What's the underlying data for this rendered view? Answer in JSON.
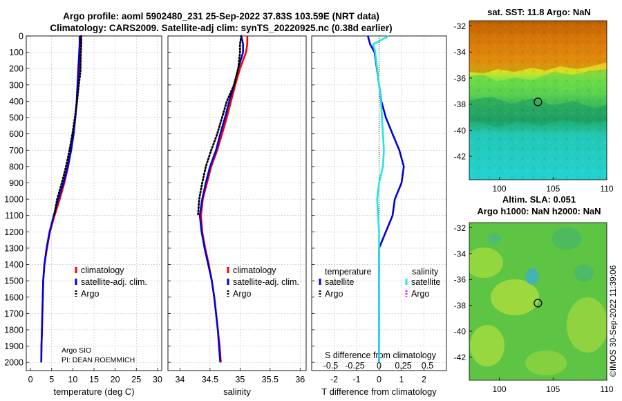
{
  "header": {
    "line1": "Argo profile: aoml 5902480_231 25-Sep-2022 37.83S 103.59E (NRT data)",
    "line2": "Climatology: CARS2009. Satellite-adj clim: synTS_20220925.nc (0.38d earlier)"
  },
  "argo_info": {
    "line1": "Argo SIO",
    "line2": "PI: DEAN ROEMMICH"
  },
  "maps": {
    "sst_title": "sat. SST: 11.8 Argo: NaN",
    "sla_title1": "Altim. SLA: 0.051",
    "sla_title2": "Argo h1000: NaN h2000: NaN",
    "lat_ticks": [
      "-32",
      "-34",
      "-36",
      "-38",
      "-40",
      "-42"
    ],
    "lon_ticks": [
      "100",
      "105",
      "110"
    ],
    "marker": {
      "lon": 103.59,
      "lat": -37.83
    }
  },
  "stamp": "©IMOS 30-Sep-2022 11:39:06",
  "colors": {
    "climatology": "#ff0000",
    "satellite": "#0000dd",
    "argo": "#000000",
    "t_satellite": "#0000dd",
    "s_satellite": "#22e5e5",
    "s_argo": "#ff00ff",
    "grid": "#bbbbbb"
  },
  "chart_data": [
    {
      "type": "line",
      "title": "",
      "xlabel": "temperature (deg C)",
      "ylabel": "",
      "xlim": [
        -1,
        31
      ],
      "ylim": [
        2050,
        0
      ],
      "xticks": [
        "0",
        "5",
        "10",
        "15",
        "20",
        "25",
        "30"
      ],
      "xtick_values": [
        0,
        5,
        10,
        15,
        20,
        25,
        30
      ],
      "yticks": [
        "0",
        "100",
        "200",
        "300",
        "400",
        "500",
        "600",
        "700",
        "800",
        "900",
        "1000",
        "1100",
        "1200",
        "1300",
        "1400",
        "1500",
        "1600",
        "1700",
        "1800",
        "1900",
        "2000"
      ],
      "ytick_values": [
        0,
        100,
        200,
        300,
        400,
        500,
        600,
        700,
        800,
        900,
        1000,
        1100,
        1200,
        1300,
        1400,
        1500,
        1600,
        1700,
        1800,
        1900,
        2000
      ],
      "legend": {
        "position": "lower-right",
        "entries": [
          "climatology",
          "satellite-adj. clim.",
          "Argo"
        ]
      },
      "series": [
        {
          "name": "climatology",
          "color_key": "climatology",
          "x": [
            11.9,
            11.9,
            11.8,
            11.6,
            11.3,
            11.0,
            10.6,
            10.1,
            9.6,
            8.9,
            8.0,
            6.9,
            5.7,
            4.6,
            3.9,
            3.3,
            3.0,
            2.9,
            2.8,
            2.7,
            2.6,
            2.55
          ],
          "y": [
            0,
            50,
            100,
            200,
            300,
            400,
            500,
            600,
            700,
            800,
            900,
            1000,
            1100,
            1200,
            1300,
            1400,
            1500,
            1600,
            1700,
            1800,
            1900,
            2000
          ]
        },
        {
          "name": "satellite-adj. clim.",
          "color_key": "satellite",
          "x": [
            11.6,
            11.6,
            11.5,
            11.3,
            11.1,
            10.9,
            10.6,
            10.2,
            9.6,
            8.8,
            7.8,
            6.6,
            5.5,
            4.5,
            3.8,
            3.3,
            3.0,
            2.9,
            2.8,
            2.7,
            2.6,
            2.55
          ],
          "y": [
            0,
            50,
            100,
            200,
            300,
            400,
            500,
            600,
            700,
            800,
            900,
            1000,
            1100,
            1200,
            1300,
            1400,
            1500,
            1600,
            1700,
            1800,
            1900,
            2000
          ]
        },
        {
          "name": "Argo",
          "color_key": "argo",
          "x": [
            12.0,
            12.0,
            11.9,
            11.8,
            11.4,
            11.0,
            10.5,
            9.9,
            9.2,
            8.4,
            7.4,
            6.3,
            5.6
          ],
          "y": [
            0,
            50,
            100,
            220,
            300,
            400,
            500,
            600,
            700,
            800,
            900,
            1000,
            1100
          ]
        }
      ]
    },
    {
      "type": "line",
      "title": "",
      "xlabel": "salinity",
      "ylabel": "",
      "xlim": [
        33.8,
        36.1
      ],
      "ylim": [
        2050,
        0
      ],
      "xticks": [
        "34",
        "34.5",
        "35",
        "35.5",
        "36"
      ],
      "xtick_values": [
        34,
        34.5,
        35,
        35.5,
        36
      ],
      "legend": {
        "position": "lower-right",
        "entries": [
          "climatology",
          "satellite-adj. clim.",
          "Argo"
        ]
      },
      "series": [
        {
          "name": "climatology",
          "color_key": "climatology",
          "x": [
            35.12,
            35.12,
            35.1,
            35.0,
            34.92,
            34.85,
            34.78,
            34.7,
            34.62,
            34.52,
            34.45,
            34.38,
            34.35,
            34.37,
            34.42,
            34.48,
            34.53,
            34.57,
            34.6,
            34.63,
            34.66,
            34.68
          ],
          "y": [
            0,
            50,
            100,
            200,
            300,
            400,
            500,
            600,
            700,
            800,
            900,
            1000,
            1100,
            1200,
            1300,
            1400,
            1500,
            1600,
            1700,
            1800,
            1900,
            2000
          ]
        },
        {
          "name": "satellite-adj. clim.",
          "color_key": "satellite",
          "x": [
            35.02,
            35.05,
            35.05,
            34.97,
            34.9,
            34.82,
            34.75,
            34.67,
            34.6,
            34.5,
            34.43,
            34.37,
            34.33,
            34.36,
            34.41,
            34.47,
            34.53,
            34.57,
            34.6,
            34.63,
            34.65,
            34.67
          ],
          "y": [
            0,
            50,
            100,
            200,
            300,
            400,
            500,
            600,
            700,
            800,
            900,
            1000,
            1100,
            1200,
            1300,
            1400,
            1500,
            1600,
            1700,
            1800,
            1900,
            2000
          ]
        },
        {
          "name": "Argo",
          "color_key": "argo",
          "x": [
            35.02,
            35.0,
            35.0,
            34.97,
            34.9,
            34.78,
            34.7,
            34.62,
            34.52,
            34.43,
            34.37,
            34.32,
            34.3
          ],
          "y": [
            0,
            50,
            100,
            200,
            300,
            400,
            500,
            600,
            700,
            800,
            900,
            1000,
            1100
          ]
        }
      ]
    },
    {
      "type": "line",
      "title": "",
      "xlabel": "T difference from climatology",
      "ylabel": "",
      "xlim": [
        -3,
        3
      ],
      "ylim": [
        2050,
        0
      ],
      "xticks": [
        "-2",
        "-1",
        "0",
        "1",
        "2"
      ],
      "xtick_values": [
        -2,
        -1,
        0,
        1,
        2
      ],
      "s_axis_label": "S difference from climatology",
      "s_axis_ticks": [
        "-0.5",
        "-0.25",
        "0",
        "0.25",
        "0.5"
      ],
      "s_axis_tick_values": [
        -0.5,
        -0.25,
        0,
        0.25,
        0.5
      ],
      "legend": {
        "position": "lower-center",
        "temperature_title": "temperature",
        "salinity_title": "salinity",
        "temperature_entries": [
          "satellite",
          "Argo"
        ],
        "salinity_entries": [
          "satellite",
          "Argo"
        ]
      },
      "series": [
        {
          "name": "temperature satellite",
          "color_key": "t_satellite",
          "x_scale": "T",
          "x": [
            -0.5,
            -0.4,
            -0.2,
            -0.1,
            0.0,
            0.1,
            0.3,
            0.6,
            0.9,
            1.1,
            1.0,
            0.7,
            0.6,
            0.3,
            0.0,
            0.0,
            0.0,
            0.0,
            0.0,
            0.0,
            0.0,
            0.0
          ],
          "y": [
            0,
            50,
            100,
            200,
            300,
            400,
            500,
            600,
            700,
            800,
            900,
            1000,
            1100,
            1200,
            1300,
            1400,
            1500,
            1600,
            1700,
            1800,
            1900,
            2000
          ]
        },
        {
          "name": "salinity satellite",
          "color_key": "s_satellite",
          "x_scale": "S",
          "x": [
            0.1,
            -0.06,
            -0.04,
            -0.02,
            0.0,
            0.02,
            0.03,
            0.04,
            0.05,
            0.04,
            0.0,
            -0.02,
            -0.01,
            0.0,
            0.0,
            0.0,
            0.0,
            0.0,
            0.0,
            0.0,
            0.0,
            0.0
          ],
          "y": [
            0,
            50,
            100,
            200,
            300,
            400,
            500,
            600,
            700,
            800,
            900,
            1000,
            1100,
            1200,
            1300,
            1400,
            1500,
            1600,
            1700,
            1800,
            1900,
            2000
          ]
        }
      ]
    }
  ]
}
